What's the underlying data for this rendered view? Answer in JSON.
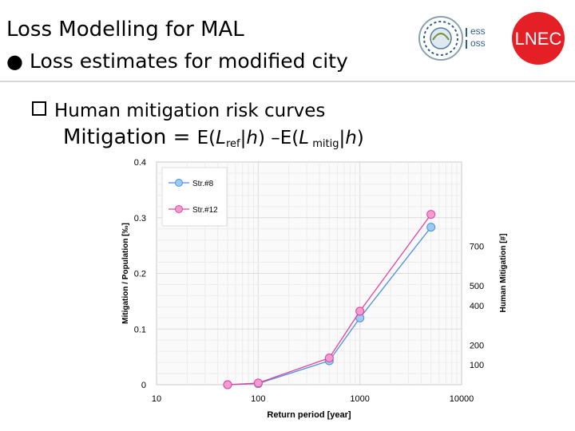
{
  "header": {
    "title": "Loss Modelling for MAL",
    "bullet": "Loss estimates for modified city"
  },
  "logos": {
    "brand": "LNEC",
    "project_lines": [
      "ess",
      "oss"
    ],
    "accent": "#e41f26"
  },
  "sub_bullet": "Human mitigation risk curves",
  "formula": {
    "lhs": "Mitigation = ",
    "e1_open": "E(",
    "l1": "L",
    "sub1": "ref",
    "bar1": "|",
    "h1": "h",
    "mid": ") –E(",
    "l2": "L",
    "sub2": " mitig",
    "bar2": "|",
    "h2": "h",
    "close": ")"
  },
  "chart_data": {
    "type": "line",
    "xscale": "log",
    "xlim": [
      10,
      10000
    ],
    "ylim": [
      0,
      0.4
    ],
    "xlabel": "Return period [year]",
    "ylabel": "Mitigation / Population [‰]",
    "y2label": "Human Mitigation [#]",
    "x_ticks": [
      "10",
      "100",
      "1000",
      "10000"
    ],
    "y_ticks": [
      "0",
      "0.1",
      "0.2",
      "0.3",
      "0.4"
    ],
    "y2_ticks": [
      {
        "label": "100",
        "y": 0.036
      },
      {
        "label": "200",
        "y": 0.071
      },
      {
        "label": "400",
        "y": 0.142
      },
      {
        "label": "500",
        "y": 0.178
      },
      {
        "label": "700",
        "y": 0.249
      }
    ],
    "grid": true,
    "legend_position": "top-left",
    "series": [
      {
        "name": "Str.#8",
        "color": "#4a90e2",
        "fill": "#9ecaf0",
        "x": [
          50,
          100,
          500,
          1000,
          5000
        ],
        "y": [
          0.0,
          0.002,
          0.043,
          0.12,
          0.283
        ]
      },
      {
        "name": "Str.#12",
        "color": "#e0439a",
        "fill": "#f59bd3",
        "x": [
          50,
          100,
          500,
          1000,
          5000
        ],
        "y": [
          0.0,
          0.003,
          0.048,
          0.132,
          0.306
        ]
      }
    ]
  }
}
